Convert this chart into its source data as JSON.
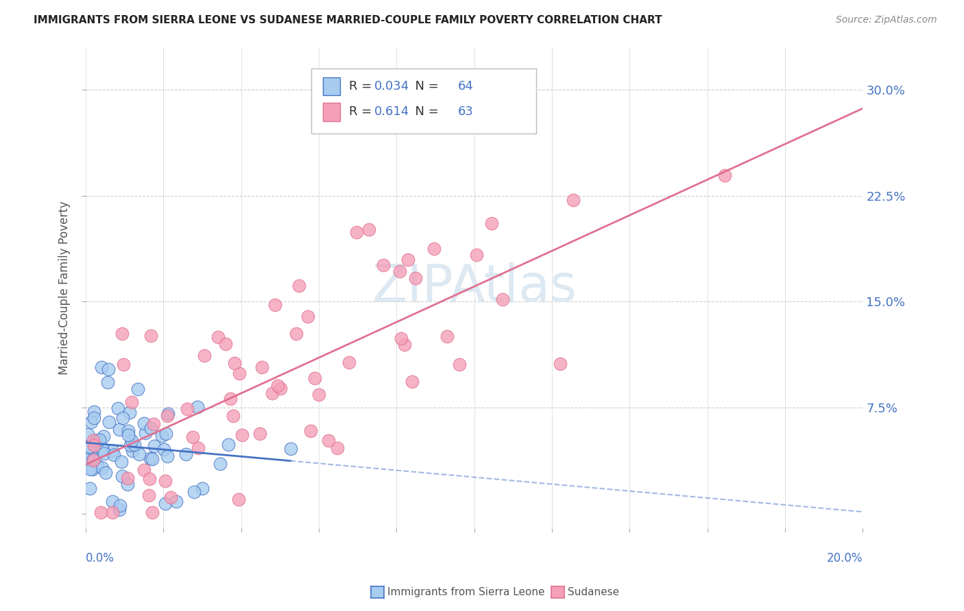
{
  "title": "IMMIGRANTS FROM SIERRA LEONE VS SUDANESE MARRIED-COUPLE FAMILY POVERTY CORRELATION CHART",
  "source": "Source: ZipAtlas.com",
  "ylabel": "Married-Couple Family Poverty",
  "yticks": [
    0.0,
    0.075,
    0.15,
    0.225,
    0.3
  ],
  "ytick_labels": [
    "",
    "7.5%",
    "15.0%",
    "22.5%",
    "30.0%"
  ],
  "xlim": [
    0.0,
    0.2
  ],
  "ylim": [
    -0.01,
    0.33
  ],
  "legend_label1": "Immigrants from Sierra Leone",
  "legend_label2": "Sudanese",
  "R1": 0.034,
  "N1": 64,
  "R2": 0.614,
  "N2": 63,
  "color1": "#a8ccf0",
  "color2": "#f5a0b8",
  "line_color1": "#4472c4",
  "line_color2": "#e07090",
  "watermark_color": "#dce8f2",
  "background_color": "#ffffff",
  "title_fontsize": 11,
  "source_fontsize": 10,
  "scatter_size": 180,
  "scatter_alpha": 0.8
}
